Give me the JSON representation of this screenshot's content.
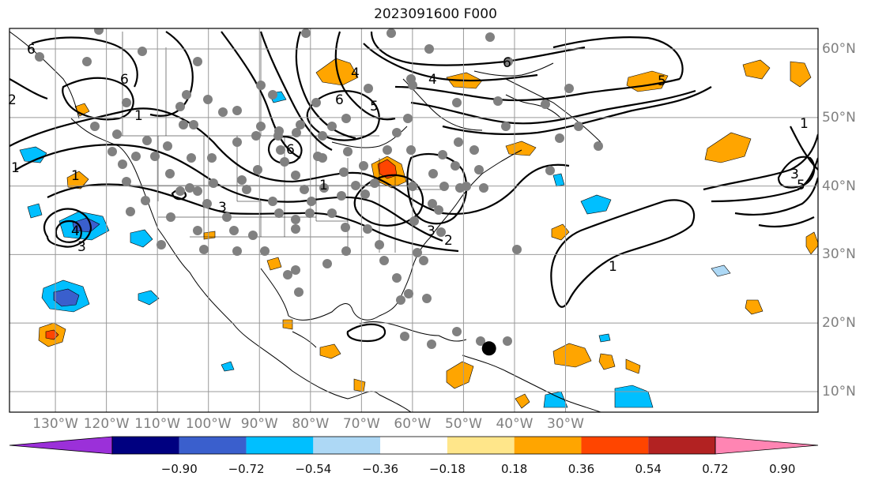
{
  "title": "2023091600 F000",
  "map": {
    "projection": "plate-carree",
    "lon_range": [
      -139,
      19.5
    ],
    "lat_range": [
      7,
      63
    ],
    "lon_ticks": [
      {
        "value": -130,
        "label": "130°W"
      },
      {
        "value": -120,
        "label": "120°W"
      },
      {
        "value": -110,
        "label": "110°W"
      },
      {
        "value": -100,
        "label": "100°W"
      },
      {
        "value": -90,
        "label": "90°W"
      },
      {
        "value": -80,
        "label": "80°W"
      },
      {
        "value": -70,
        "label": "70°W"
      },
      {
        "value": -60,
        "label": "60°W"
      },
      {
        "value": -50,
        "label": "50°W"
      },
      {
        "value": -40,
        "label": "40°W"
      },
      {
        "value": -30,
        "label": "30°W"
      }
    ],
    "lat_ticks": [
      {
        "value": 60,
        "label": "60°N"
      },
      {
        "value": 50,
        "label": "50°N"
      },
      {
        "value": 40,
        "label": "40°N"
      },
      {
        "value": 30,
        "label": "30°N"
      },
      {
        "value": 20,
        "label": "20°N"
      },
      {
        "value": 10,
        "label": "10°N"
      }
    ],
    "grid": true,
    "contour_labels": [
      "6",
      "5",
      "4",
      "3",
      "2",
      "1"
    ],
    "storm_marker": {
      "lon": -45,
      "lat": 16.3,
      "color": "#000000"
    },
    "observation_color": "#808080"
  },
  "colorbar": {
    "labels": [
      "−0.90",
      "−0.72",
      "−0.54",
      "−0.36",
      "−0.18",
      "0.18",
      "0.36",
      "0.54",
      "0.72",
      "0.90"
    ],
    "colors": [
      "#9b30d9",
      "#000080",
      "#3a5fcd",
      "#00bfff",
      "#add8f5",
      "#ffffff",
      "#ffe68a",
      "#ffa500",
      "#ff4500",
      "#b22222",
      "#ff85b3"
    ],
    "extend": "both"
  }
}
